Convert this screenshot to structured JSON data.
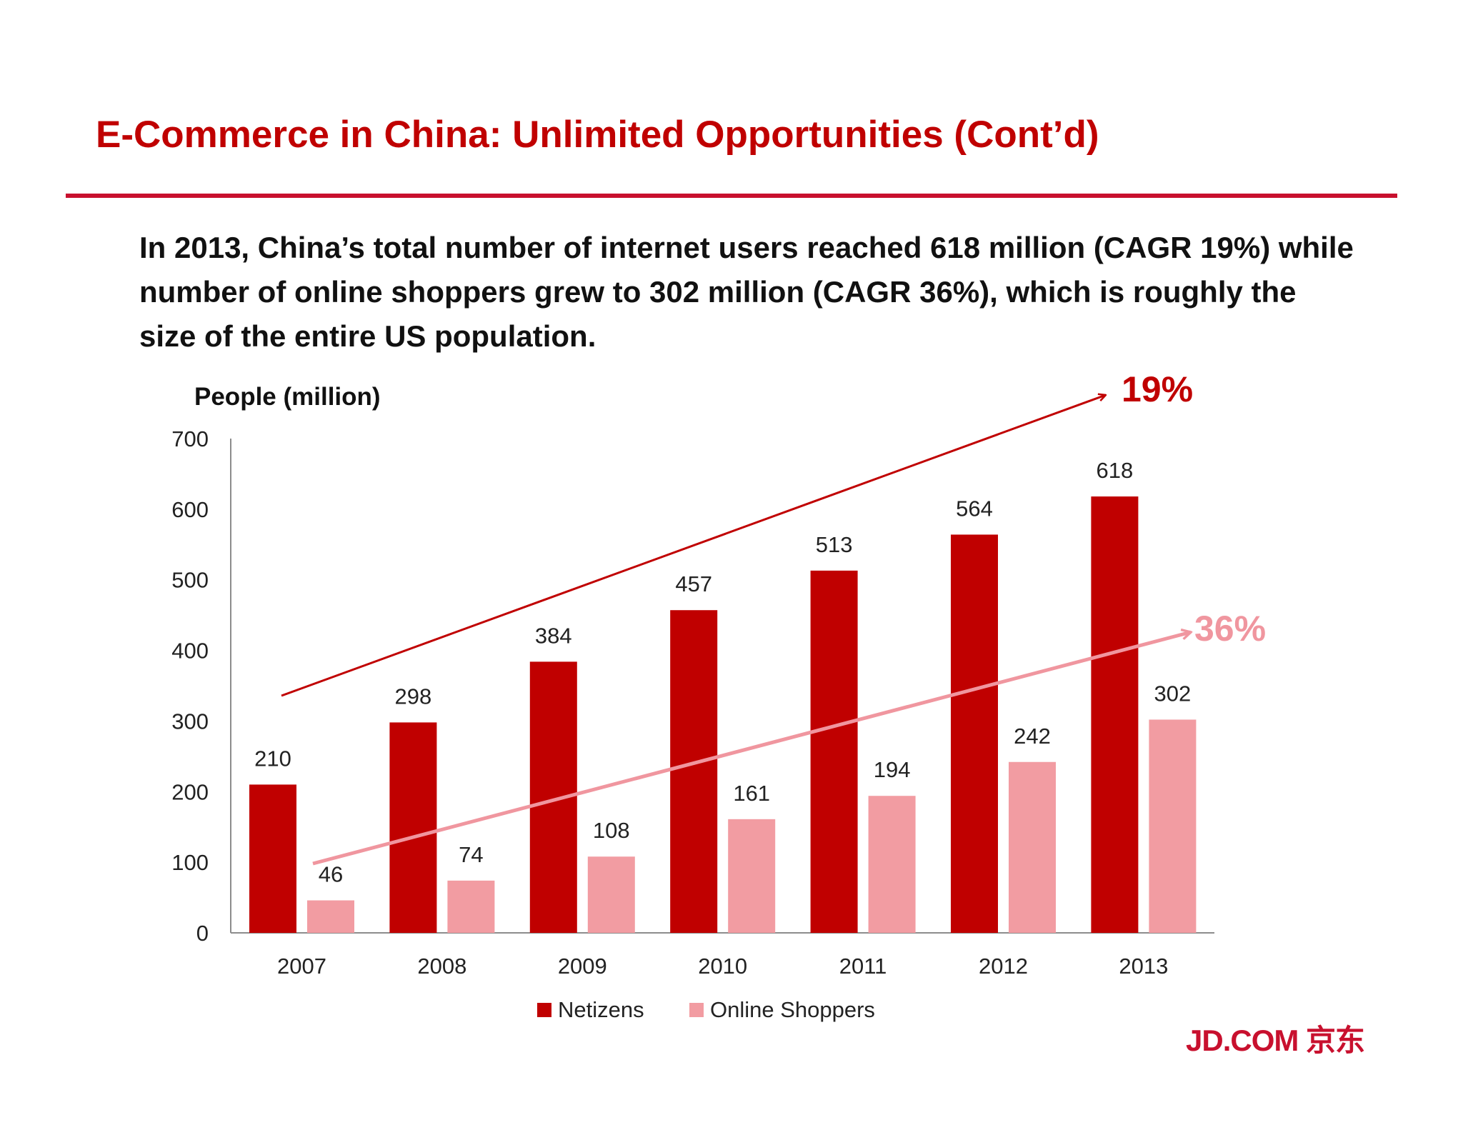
{
  "slide": {
    "title": "E-Commerce in China: Unlimited Opportunities (Cont’d)",
    "headline": "In 2013, China’s total number of internet users reached 618 million (CAGR 19%) while number of online shoppers grew to 302 million (CAGR 36%), which is roughly the size of the entire US population.",
    "logo_text": "JD.COM 京东",
    "accent_color": "#c00000"
  },
  "chart_data": {
    "type": "bar",
    "title": "",
    "ylabel": "People (million)",
    "xlabel": "",
    "ylim": [
      0,
      700
    ],
    "yticks": [
      0,
      100,
      200,
      300,
      400,
      500,
      600,
      700
    ],
    "categories": [
      "2007",
      "2008",
      "2009",
      "2010",
      "2011",
      "2012",
      "2013"
    ],
    "series": [
      {
        "name": "Netizens",
        "color": "#c00000",
        "values": [
          210,
          298,
          384,
          457,
          513,
          564,
          618
        ]
      },
      {
        "name": "Online Shoppers",
        "color": "#f29ca2",
        "values": [
          46,
          74,
          108,
          161,
          194,
          242,
          302
        ]
      }
    ],
    "legend_position": "bottom",
    "grid": false,
    "annotations": [
      {
        "text": "19%",
        "series": "Netizens",
        "color": "#c00000",
        "type": "trend-arrow"
      },
      {
        "text": "36%",
        "series": "Online Shoppers",
        "color": "#f0969f",
        "type": "trend-arrow"
      }
    ]
  }
}
